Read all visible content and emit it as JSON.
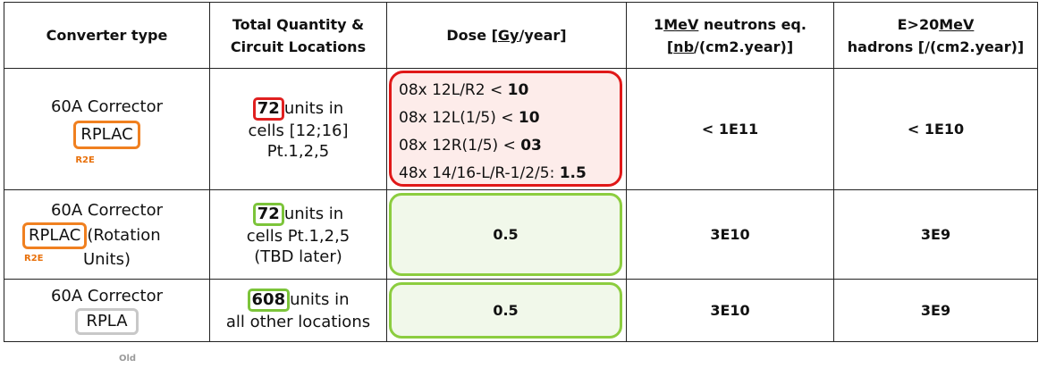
{
  "headers": {
    "converter_type": "Converter type",
    "quantity_line1": "Total Quantity &",
    "quantity_line2": "Circuit Locations",
    "dose_prefix": "Dose [",
    "dose_unit": "Gy",
    "dose_suffix": "/year]",
    "neutrons_line1_prefix": "1",
    "neutrons_line1_ul": "MeV",
    "neutrons_line1_suffix": " neutrons eq.",
    "neutrons_line2_prefix": "[",
    "neutrons_line2_ul": "nb",
    "neutrons_line2_suffix": "/(cm2.year)]",
    "hadrons_line1_prefix": "E>20",
    "hadrons_line1_ul": "MeV",
    "hadrons_line2": "hadrons [/(cm2.year)]"
  },
  "rows": [
    {
      "converter_name": "60A Corrector",
      "converter_tag": "RPLAC",
      "converter_small": "R2E",
      "qty_number": "72",
      "qty_line1_rest": "units in",
      "qty_line2": "cells [12;16]",
      "qty_line3": "Pt.1,2,5",
      "dose_lines": [
        {
          "text": "08x 12L/R2 < ",
          "value": "10"
        },
        {
          "text": "08x 12L(1/5) < ",
          "value": "10"
        },
        {
          "text": "08x 12R(1/5) < ",
          "value": "03"
        },
        {
          "text": "48x 14/16-L/R-1/2/5: ",
          "value": "1.5"
        }
      ],
      "neutrons": "< 1E11",
      "hadrons": "< 1E10"
    },
    {
      "converter_name": "60A Corrector",
      "converter_tag": "RPLAC",
      "converter_tag_after": "(Rotation",
      "converter_line3": "Units)",
      "converter_small": "R2E",
      "qty_number": "72",
      "qty_line1_rest": "units in",
      "qty_line2": "cells Pt.1,2,5",
      "qty_line3": "(TBD later)",
      "dose": "0.5",
      "neutrons": "3E10",
      "hadrons": "3E9"
    },
    {
      "converter_name": "60A Corrector",
      "converter_tag": "RPLA",
      "converter_small": "Old",
      "qty_number": "608",
      "qty_line1_rest": "units in",
      "qty_line2": "all other locations",
      "dose": "0.5",
      "neutrons": "3E10",
      "hadrons": "3E9"
    }
  ],
  "colors": {
    "red_border": "#e01818",
    "green_border": "#8ccd3f",
    "orange_border": "#f08020",
    "gray_border": "#c8c8c8"
  }
}
